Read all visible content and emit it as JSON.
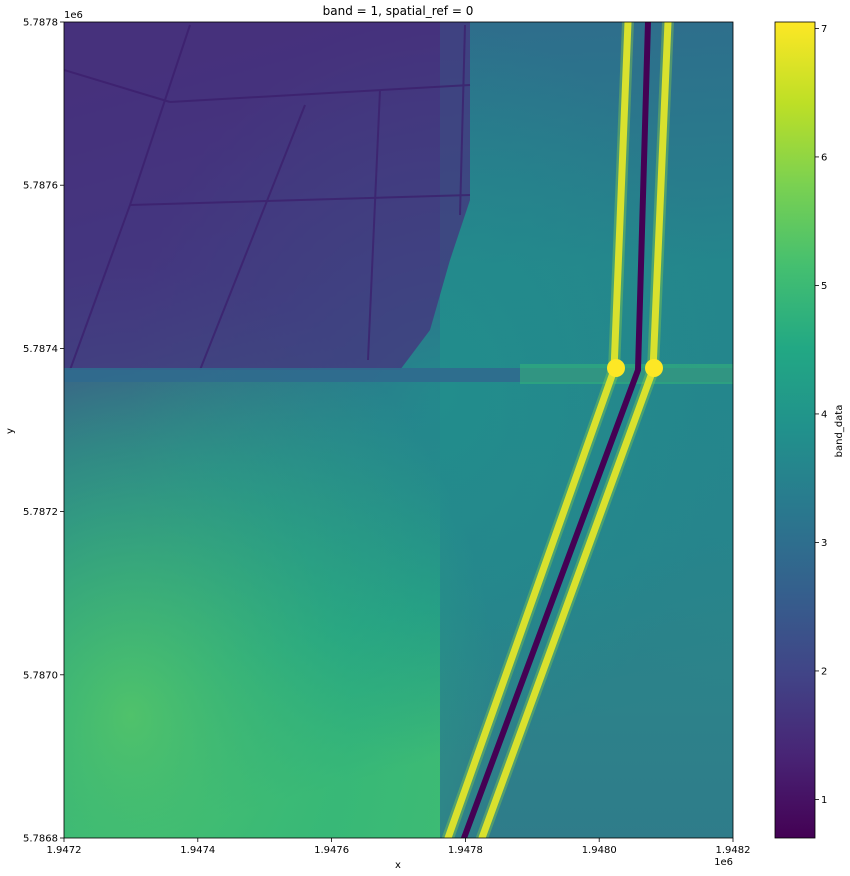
{
  "chart_data": {
    "type": "heatmap",
    "title": "band = 1, spatial_ref = 0",
    "xlabel": "x",
    "ylabel": "y",
    "x_offset_label": "1e6",
    "y_offset_label": "1e6",
    "xlim": [
      1.9472,
      1.9482
    ],
    "ylim": [
      5.7868,
      5.7878
    ],
    "x_ticks": [
      1.9472,
      1.9474,
      1.9476,
      1.9478,
      1.948,
      1.9482
    ],
    "x_tick_labels": [
      "1.9472",
      "1.9474",
      "1.9476",
      "1.9478",
      "1.9480",
      "1.9482"
    ],
    "y_ticks": [
      5.7868,
      5.787,
      5.7872,
      5.7874,
      5.7876,
      5.7878
    ],
    "y_tick_labels": [
      "5.7868",
      "5.7870",
      "5.7872",
      "5.7874",
      "5.7876",
      "5.7878"
    ],
    "colorbar": {
      "label": "band_data",
      "colormap": "viridis",
      "range": [
        0.7,
        7.05
      ],
      "ticks": [
        1,
        2,
        3,
        4,
        5,
        6,
        7
      ],
      "tick_labels": [
        "1",
        "2",
        "3",
        "4",
        "5",
        "6",
        "7"
      ]
    }
  }
}
